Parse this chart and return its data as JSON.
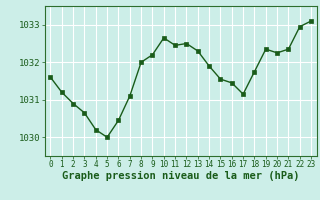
{
  "x": [
    0,
    1,
    2,
    3,
    4,
    5,
    6,
    7,
    8,
    9,
    10,
    11,
    12,
    13,
    14,
    15,
    16,
    17,
    18,
    19,
    20,
    21,
    22,
    23
  ],
  "y": [
    1031.6,
    1031.2,
    1030.9,
    1030.65,
    1030.2,
    1030.0,
    1030.45,
    1031.1,
    1032.0,
    1032.2,
    1032.65,
    1032.45,
    1032.5,
    1032.3,
    1031.9,
    1031.55,
    1031.45,
    1031.15,
    1031.75,
    1032.35,
    1032.25,
    1032.35,
    1032.95,
    1033.1
  ],
  "line_color": "#1a5c1a",
  "marker_color": "#1a5c1a",
  "background_color": "#cceee8",
  "grid_color": "#ffffff",
  "title": "Graphe pression niveau de la mer (hPa)",
  "ylim": [
    1029.5,
    1033.5
  ],
  "yticks": [
    1030,
    1031,
    1032,
    1033
  ],
  "xticks": [
    0,
    1,
    2,
    3,
    4,
    5,
    6,
    7,
    8,
    9,
    10,
    11,
    12,
    13,
    14,
    15,
    16,
    17,
    18,
    19,
    20,
    21,
    22,
    23
  ],
  "tick_color": "#1a5c1a",
  "label_fontsize": 6.5,
  "title_fontsize": 7.5,
  "border_color": "#2d6e2d"
}
